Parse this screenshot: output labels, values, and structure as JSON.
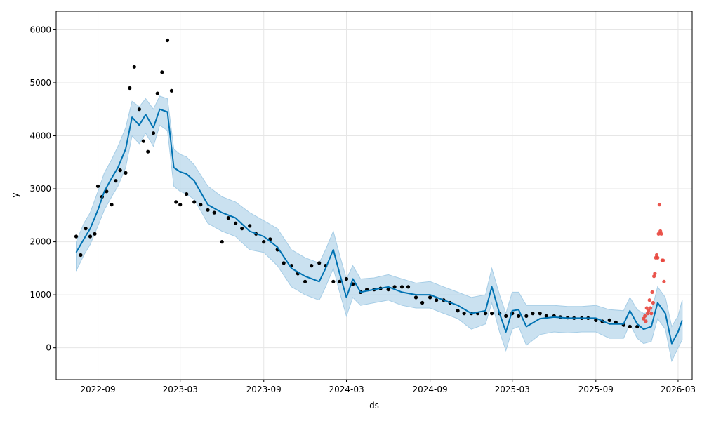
{
  "chart_data": {
    "type": "line",
    "title": "",
    "xlabel": "ds",
    "ylabel": "y",
    "xlim": [
      "2022-06-01",
      "2026-04-01"
    ],
    "ylim": [
      -600,
      6350
    ],
    "grid": true,
    "legend": "none",
    "x_tick_labels": [
      "2022-09",
      "2023-03",
      "2023-09",
      "2024-03",
      "2024-09",
      "2025-03",
      "2025-09",
      "2026-03"
    ],
    "y_tick_labels": [
      "0",
      "1000",
      "2000",
      "3000",
      "4000",
      "5000",
      "6000"
    ],
    "colors": {
      "forecast_line": "#0072b2",
      "interval_band": "#a6cde6",
      "observed": "#000000",
      "anomaly": "#e8453c",
      "grid": "#e6e6e6"
    },
    "series": [
      {
        "role": "forecast",
        "x": [
          "2022-07-15",
          "2022-08-01",
          "2022-08-15",
          "2022-09-01",
          "2022-09-15",
          "2022-10-01",
          "2022-10-15",
          "2022-11-01",
          "2022-11-15",
          "2022-12-01",
          "2022-12-15",
          "2023-01-01",
          "2023-01-15",
          "2023-02-01",
          "2023-02-15",
          "2023-03-01",
          "2023-03-15",
          "2023-04-01",
          "2023-05-01",
          "2023-06-01",
          "2023-07-01",
          "2023-08-01",
          "2023-09-01",
          "2023-10-01",
          "2023-11-01",
          "2023-12-01",
          "2024-01-01",
          "2024-01-15",
          "2024-02-01",
          "2024-02-15",
          "2024-03-01",
          "2024-03-15",
          "2024-04-01",
          "2024-05-01",
          "2024-06-01",
          "2024-07-01",
          "2024-08-01",
          "2024-09-01",
          "2024-10-01",
          "2024-11-01",
          "2024-12-01",
          "2025-01-01",
          "2025-01-15",
          "2025-02-01",
          "2025-02-15",
          "2025-03-01",
          "2025-03-15",
          "2025-04-01",
          "2025-05-01",
          "2025-06-01",
          "2025-07-01",
          "2025-08-01",
          "2025-09-01",
          "2025-10-01",
          "2025-11-01",
          "2025-11-15",
          "2025-12-01",
          "2025-12-15",
          "2026-01-01",
          "2026-01-15",
          "2026-02-01",
          "2026-02-15",
          "2026-03-01",
          "2026-03-10"
        ],
        "y": [
          1800,
          2050,
          2250,
          2600,
          2950,
          3200,
          3400,
          3750,
          4350,
          4200,
          4400,
          4150,
          4500,
          4450,
          3400,
          3320,
          3280,
          3150,
          2700,
          2550,
          2450,
          2200,
          2100,
          1900,
          1500,
          1350,
          1250,
          1500,
          1850,
          1400,
          950,
          1300,
          1050,
          1100,
          1150,
          1050,
          1000,
          1000,
          900,
          800,
          650,
          700,
          1150,
          650,
          300,
          700,
          720,
          400,
          550,
          580,
          560,
          560,
          560,
          450,
          450,
          700,
          450,
          350,
          400,
          850,
          650,
          80,
          300,
          520
        ]
      },
      {
        "role": "interval",
        "upper": [
          2000,
          2350,
          2550,
          2950,
          3300,
          3550,
          3800,
          4150,
          4650,
          4550,
          4700,
          4500,
          4750,
          4700,
          3750,
          3650,
          3600,
          3450,
          3050,
          2850,
          2750,
          2550,
          2400,
          2250,
          1850,
          1700,
          1600,
          1850,
          2200,
          1750,
          1300,
          1550,
          1300,
          1320,
          1380,
          1300,
          1220,
          1250,
          1150,
          1050,
          950,
          1000,
          1500,
          1000,
          650,
          1050,
          1050,
          800,
          800,
          800,
          780,
          780,
          800,
          720,
          700,
          950,
          720,
          650,
          680,
          1150,
          950,
          400,
          600,
          900
        ],
        "lower": [
          1450,
          1750,
          1950,
          2300,
          2600,
          2850,
          3050,
          3400,
          4000,
          3850,
          4050,
          3800,
          4200,
          4100,
          3050,
          2950,
          2900,
          2800,
          2350,
          2200,
          2100,
          1850,
          1800,
          1550,
          1150,
          1000,
          900,
          1150,
          1500,
          1050,
          600,
          950,
          800,
          850,
          900,
          800,
          750,
          750,
          650,
          550,
          350,
          450,
          850,
          300,
          -50,
          350,
          400,
          50,
          250,
          300,
          280,
          300,
          300,
          180,
          180,
          450,
          180,
          80,
          120,
          550,
          350,
          -250,
          0,
          150
        ]
      },
      {
        "role": "observed",
        "x": [
          "2022-07-15",
          "2022-07-25",
          "2022-08-05",
          "2022-08-15",
          "2022-08-25",
          "2022-09-01",
          "2022-09-10",
          "2022-09-20",
          "2022-10-01",
          "2022-10-10",
          "2022-10-20",
          "2022-11-01",
          "2022-11-10",
          "2022-11-20",
          "2022-12-01",
          "2022-12-10",
          "2022-12-20",
          "2023-01-01",
          "2023-01-10",
          "2023-01-20",
          "2023-02-01",
          "2023-02-10",
          "2023-02-20",
          "2023-03-01",
          "2023-03-15",
          "2023-04-01",
          "2023-04-15",
          "2023-05-01",
          "2023-05-15",
          "2023-06-01",
          "2023-06-15",
          "2023-07-01",
          "2023-07-15",
          "2023-08-01",
          "2023-08-15",
          "2023-09-01",
          "2023-09-15",
          "2023-10-01",
          "2023-10-15",
          "2023-11-01",
          "2023-11-15",
          "2023-12-01",
          "2023-12-15",
          "2024-01-01",
          "2024-01-15",
          "2024-02-01",
          "2024-02-15",
          "2024-03-01",
          "2024-03-15",
          "2024-04-01",
          "2024-04-15",
          "2024-05-01",
          "2024-05-15",
          "2024-06-01",
          "2024-06-15",
          "2024-07-01",
          "2024-07-15",
          "2024-08-01",
          "2024-08-15",
          "2024-09-01",
          "2024-09-15",
          "2024-10-01",
          "2024-10-15",
          "2024-11-01",
          "2024-11-15",
          "2024-12-01",
          "2024-12-15",
          "2025-01-01",
          "2025-01-15",
          "2025-02-01",
          "2025-02-15",
          "2025-03-01",
          "2025-03-15",
          "2025-04-01",
          "2025-04-15",
          "2025-05-01",
          "2025-05-15",
          "2025-06-01",
          "2025-06-15",
          "2025-07-01",
          "2025-07-15",
          "2025-08-01",
          "2025-08-15",
          "2025-09-01",
          "2025-09-15",
          "2025-10-01",
          "2025-10-15",
          "2025-11-01",
          "2025-11-15",
          "2025-12-01"
        ],
        "y": [
          2100,
          1750,
          2250,
          2100,
          2150,
          3050,
          2850,
          2950,
          2700,
          3150,
          3350,
          3300,
          4900,
          5300,
          4500,
          3900,
          3700,
          4050,
          4800,
          5200,
          5800,
          4850,
          2750,
          2700,
          2900,
          2750,
          2700,
          2600,
          2550,
          2000,
          2450,
          2350,
          2250,
          2300,
          2150,
          2000,
          2050,
          1850,
          1600,
          1550,
          1400,
          1250,
          1550,
          1600,
          1550,
          1250,
          1250,
          1300,
          1200,
          1050,
          1100,
          1100,
          1120,
          1100,
          1150,
          1150,
          1150,
          950,
          850,
          950,
          900,
          900,
          850,
          700,
          650,
          650,
          650,
          650,
          650,
          650,
          600,
          650,
          600,
          600,
          650,
          650,
          600,
          600,
          580,
          570,
          560,
          560,
          560,
          520,
          500,
          520,
          480,
          430,
          400,
          400
        ]
      },
      {
        "role": "anomaly",
        "x": [
          "2025-12-15",
          "2025-12-18",
          "2025-12-20",
          "2025-12-22",
          "2025-12-24",
          "2025-12-26",
          "2025-12-28",
          "2025-12-30",
          "2026-01-01",
          "2026-01-03",
          "2026-01-05",
          "2026-01-07",
          "2026-01-09",
          "2026-01-11",
          "2026-01-13",
          "2026-01-15",
          "2026-01-17",
          "2026-01-19",
          "2026-01-21",
          "2026-01-23",
          "2026-01-25",
          "2026-01-27",
          "2026-01-29"
        ],
        "y": [
          550,
          600,
          500,
          750,
          650,
          700,
          900,
          750,
          650,
          1050,
          850,
          1350,
          1400,
          1700,
          1750,
          1700,
          2150,
          2700,
          2200,
          2150,
          1650,
          1650,
          1250
        ]
      }
    ]
  }
}
